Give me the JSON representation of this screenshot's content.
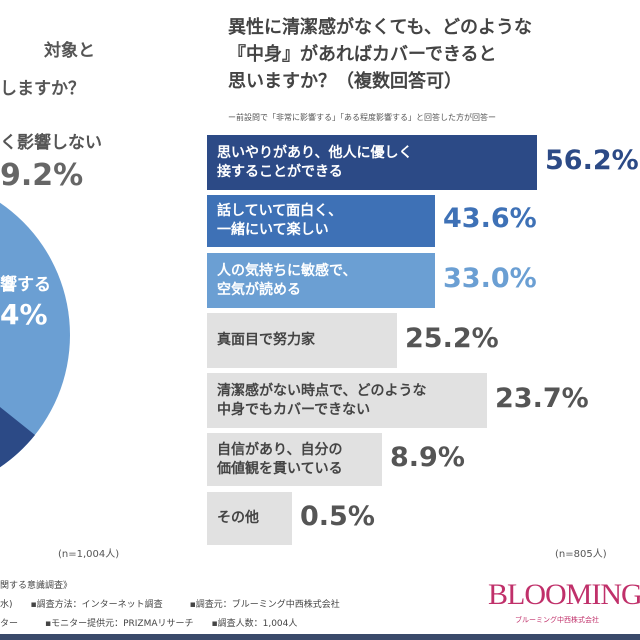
{
  "left": {
    "title_lines": [
      "対象と",
      "しますか？"
    ],
    "n": "(n=1,004人)",
    "labels": [
      {
        "text": "く影響しない",
        "value": "9.2%"
      },
      {
        "text": "響する",
        "value": "4%"
      }
    ]
  },
  "chart_data": {
    "type": "bar",
    "orientation": "horizontal",
    "title": "異性に清潔感がなくても、どのような『中身』があればカバーできると思いますか？（複数回答可）",
    "title_lines": [
      "異性に清潔感がなくても、どのような",
      "『中身』があればカバーできると",
      "思いますか？（複数回答可）"
    ],
    "subtitle": "ー前設問で「非常に影響する」「ある程度影響する」と回答した方が回答ー",
    "categories": [
      "思いやりがあり、他人に優しく接することができる",
      "話していて面白く、一緒にいて楽しい",
      "人の気持ちに敏感で、空気が読める",
      "真面目で努力家",
      "清潔感がない時点で、どのような中身でもカバーできない",
      "自信があり、自分の価値観を貫いている",
      "その他"
    ],
    "category_lines": [
      [
        "思いやりがあり、他人に優しく",
        "接することができる"
      ],
      [
        "話していて面白く、",
        "一緒にいて楽しい"
      ],
      [
        "人の気持ちに敏感で、",
        "空気が読める"
      ],
      [
        "真面目で努力家"
      ],
      [
        "清潔感がない時点で、どのような",
        "中身でもカバーできない"
      ],
      [
        "自信があり、自分の",
        "価値観を貫いている"
      ],
      [
        "その他"
      ]
    ],
    "values": [
      56.2,
      43.6,
      33.0,
      25.2,
      23.7,
      8.9,
      0.5
    ],
    "value_labels": [
      "56.2%",
      "43.6%",
      "33.0%",
      "25.2%",
      "23.7%",
      "8.9%",
      "0.5%"
    ],
    "unit": "%",
    "n": "(n=805人)",
    "colors": [
      "#2c4a86",
      "#3e71b6",
      "#6b9fd3",
      "#e1e1e1",
      "#e1e1e1",
      "#e1e1e1",
      "#e1e1e1"
    ]
  },
  "footer": {
    "lines": [
      "関する意識調査》",
      "水)　　▪調査方法：インターネット調査　　　▪調査元：ブルーミング中西株式会社",
      "ター　　　▪モニター提供元：PRIZMAリサーチ　　▪調査人数：1,004人"
    ],
    "logo": "BLOOMING",
    "logo_sub": "ブルーミング中西株式会社"
  }
}
